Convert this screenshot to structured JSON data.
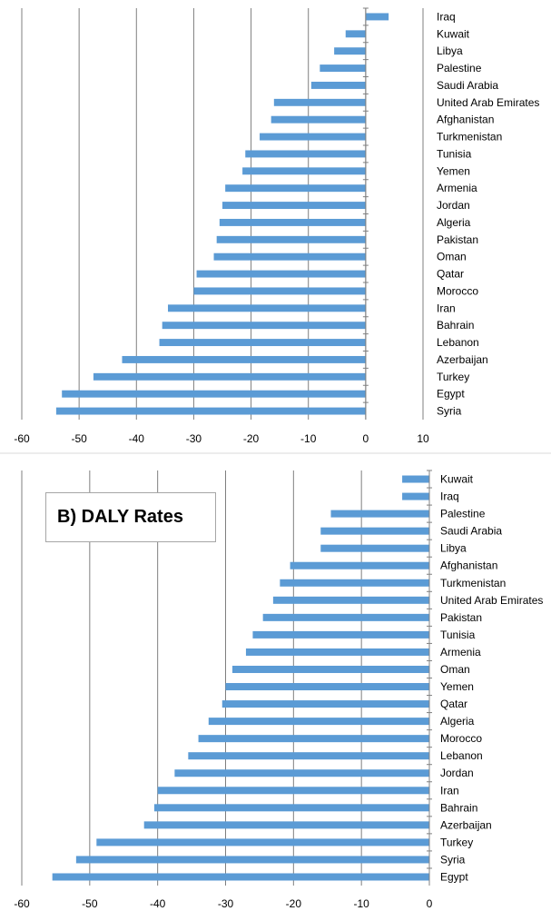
{
  "colors": {
    "bar": "#5b9bd5",
    "grid": "#7f7f7f",
    "axis": "#808080",
    "text": "#000000",
    "separator": "#d9d9d9"
  },
  "chart_data": [
    {
      "type": "bar",
      "orientation": "horizontal",
      "title": "",
      "xlabel": "",
      "ylabel": "",
      "xlim": [
        -60,
        10
      ],
      "xticks": [
        "-60",
        "-50",
        "-40",
        "-30",
        "-20",
        "-10",
        "0",
        "10"
      ],
      "grid": true,
      "legend": "none",
      "categories": [
        "Iraq",
        "Kuwait",
        "Libya",
        "Palestine",
        "Saudi Arabia",
        "United Arab Emirates",
        "Afghanistan",
        "Turkmenistan",
        "Tunisia",
        "Yemen",
        "Armenia",
        "Jordan",
        "Algeria",
        "Pakistan",
        "Oman",
        "Qatar",
        "Morocco",
        "Iran",
        "Bahrain",
        "Lebanon",
        "Azerbaijan",
        "Turkey",
        "Egypt",
        "Syria"
      ],
      "values": [
        4,
        -3.5,
        -5.5,
        -8,
        -9.5,
        -16,
        -16.5,
        -18.5,
        -21,
        -21.5,
        -24.5,
        -25,
        -25.5,
        -26,
        -26.5,
        -29.5,
        -30,
        -34.5,
        -35.5,
        -36,
        -42.5,
        -47.5,
        -53,
        -54
      ]
    },
    {
      "type": "bar",
      "orientation": "horizontal",
      "title": "B) DALY Rates",
      "xlabel": "",
      "ylabel": "",
      "xlim": [
        -60,
        0
      ],
      "xticks": [
        "-60",
        "-50",
        "-40",
        "-30",
        "-20",
        "-10",
        "0"
      ],
      "grid": true,
      "legend": "none",
      "categories": [
        "Kuwait",
        "Iraq",
        "Palestine",
        "Saudi Arabia",
        "Libya",
        "Afghanistan",
        "Turkmenistan",
        "United Arab Emirates",
        "Pakistan",
        "Tunisia",
        "Armenia",
        "Oman",
        "Yemen",
        "Qatar",
        "Algeria",
        "Morocco",
        "Lebanon",
        "Jordan",
        "Iran",
        "Bahrain",
        "Azerbaijan",
        "Turkey",
        "Syria",
        "Egypt"
      ],
      "values": [
        -4,
        -4,
        -14.5,
        -16,
        -16,
        -20.5,
        -22,
        -23,
        -24.5,
        -26,
        -27,
        -29,
        -30,
        -30.5,
        -32.5,
        -34,
        -35.5,
        -37.5,
        -40,
        -40.5,
        -42,
        -49,
        -52,
        -55.5
      ]
    }
  ]
}
